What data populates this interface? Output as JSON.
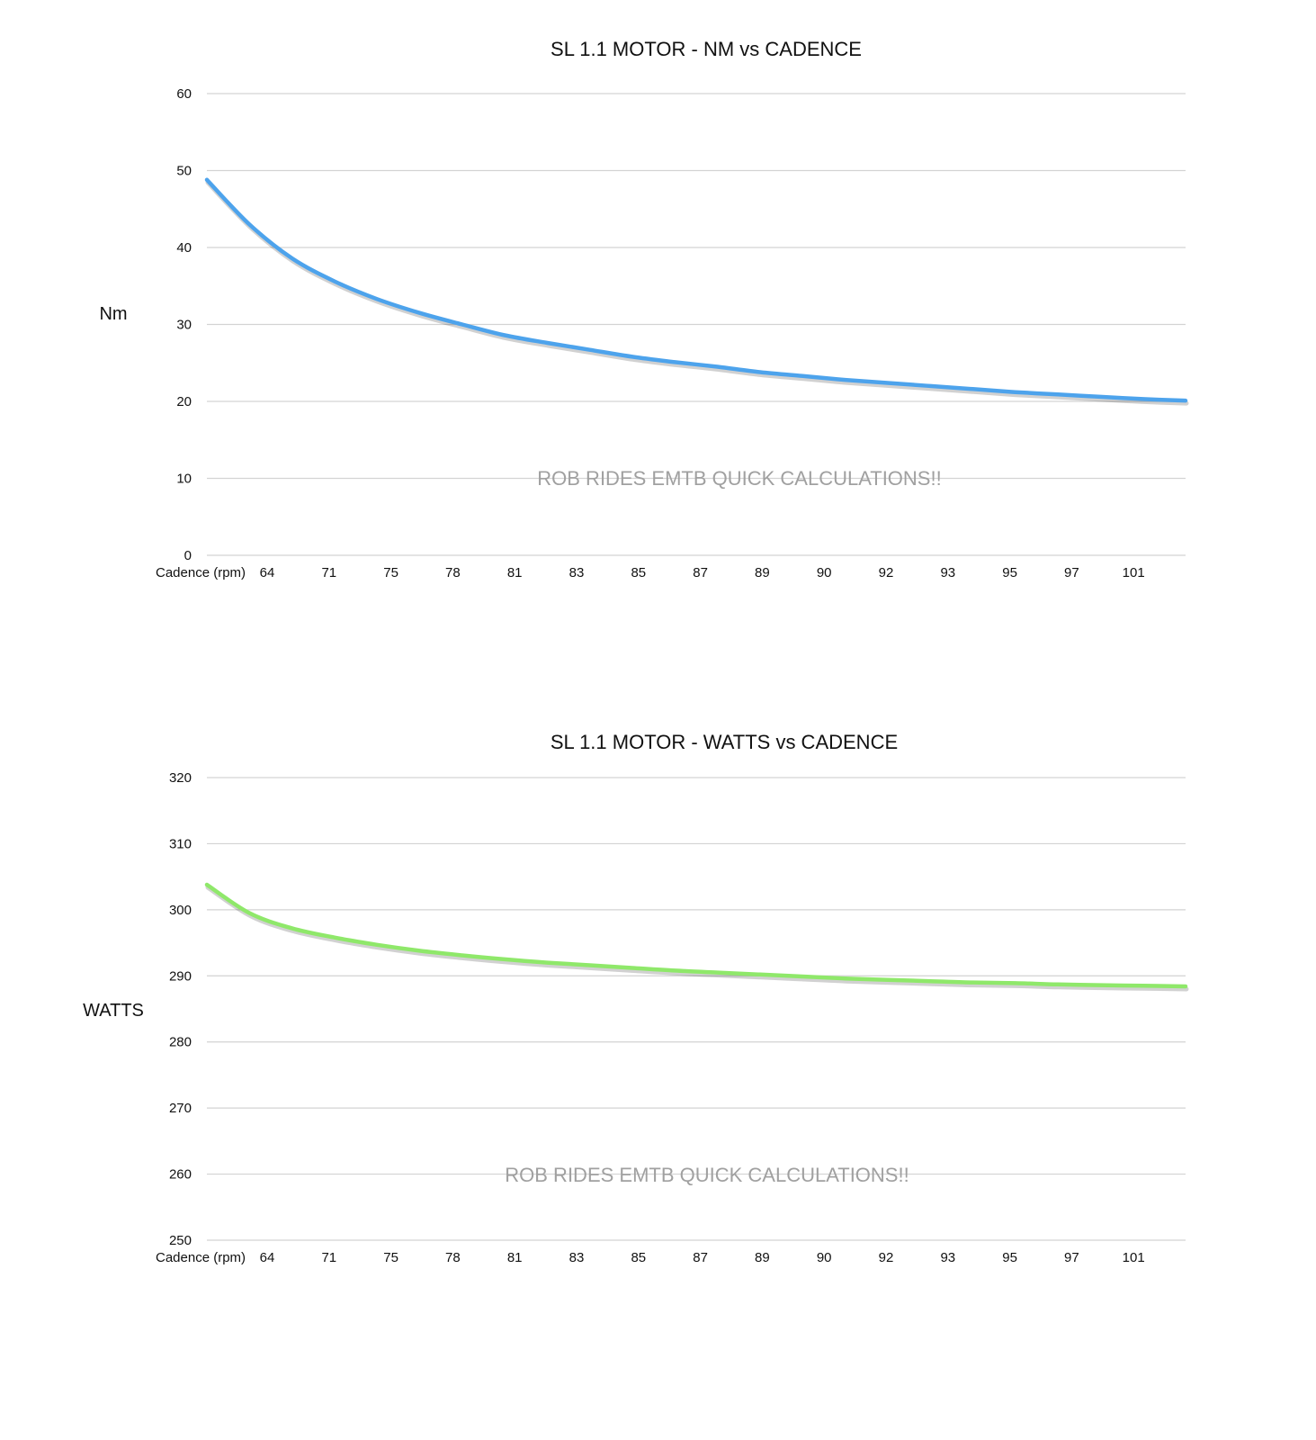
{
  "chart_data": [
    {
      "type": "line",
      "title": "SL 1.1 MOTOR - NM vs CADENCE",
      "ylabel": "Nm",
      "xlabel": "Cadence (rpm)",
      "ylim": [
        0,
        60
      ],
      "yticks": [
        0,
        10,
        20,
        30,
        40,
        50,
        60
      ],
      "xtick_labels": [
        "64",
        "71",
        "75",
        "78",
        "81",
        "83",
        "85",
        "87",
        "89",
        "90",
        "92",
        "93",
        "95",
        "97",
        "101"
      ],
      "grid": true,
      "watermark": "ROB RIDES EMTB QUICK CALCULATIONS!!",
      "color": "#4da3ec",
      "series": [
        {
          "values": [
            48.8,
            43,
            38.6,
            35.6,
            33.3,
            31.5,
            30,
            28.6,
            27.6,
            26.7,
            25.8,
            25.1,
            24.5,
            23.8,
            23.3,
            22.8,
            22.4,
            22,
            21.6,
            21.2,
            20.9,
            20.6,
            20.3,
            20.1
          ]
        }
      ]
    },
    {
      "type": "line",
      "title": "SL 1.1 MOTOR - WATTS vs CADENCE",
      "ylabel": "WATTS",
      "xlabel": "Cadence (rpm)",
      "ylim": [
        250,
        320
      ],
      "yticks": [
        250,
        260,
        270,
        280,
        290,
        300,
        310,
        320
      ],
      "xtick_labels": [
        "64",
        "71",
        "75",
        "78",
        "81",
        "83",
        "85",
        "87",
        "89",
        "90",
        "92",
        "93",
        "95",
        "97",
        "101"
      ],
      "grid": true,
      "watermark": "ROB RIDES EMTB QUICK CALCULATIONS!!",
      "color": "#8fe86a",
      "series": [
        {
          "values": [
            303.8,
            299.5,
            297.2,
            295.8,
            294.7,
            293.8,
            293.1,
            292.5,
            292,
            291.6,
            291.2,
            290.8,
            290.5,
            290.2,
            289.9,
            289.6,
            289.4,
            289.2,
            289.0,
            288.9,
            288.7,
            288.6,
            288.5,
            288.4
          ]
        }
      ]
    }
  ]
}
